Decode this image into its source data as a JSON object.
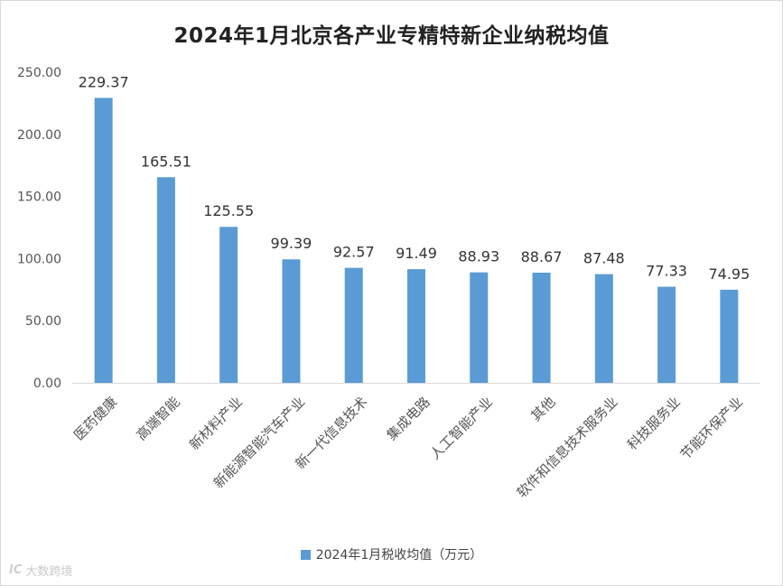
{
  "colors": {
    "bar": "#5B9BD5",
    "grid": "#d9d9d9",
    "axis_text": "#555555",
    "label_text": "#333333"
  },
  "watermark": {
    "logo_text": "IC",
    "text": "大数跨境"
  },
  "chart_data": {
    "type": "bar",
    "title": "2024年1月北京各产业专精特新企业纳税均值",
    "categories": [
      "医药健康",
      "高端智能",
      "新材料产业",
      "新能源智能汽车产业",
      "新一代信息技术",
      "集成电路",
      "人工智能产业",
      "其他",
      "软件和信息技术服务业",
      "科技服务业",
      "节能环保产业"
    ],
    "series": [
      {
        "name": "2024年1月税收均值（万元）",
        "values": [
          229.37,
          165.51,
          125.55,
          99.39,
          92.57,
          91.49,
          88.93,
          88.67,
          87.48,
          77.33,
          74.95
        ],
        "labels": [
          "229.37",
          "165.51",
          "125.55",
          "99.39",
          "92.57",
          "91.49",
          "88.93",
          "88.67",
          "87.48",
          "77.33",
          "74.95"
        ]
      }
    ],
    "yticks": [
      "0.00",
      "50.00",
      "100.00",
      "150.00",
      "200.00",
      "250.00"
    ],
    "ylim": [
      0,
      250
    ],
    "grid": false,
    "legend_position": "bottom"
  }
}
